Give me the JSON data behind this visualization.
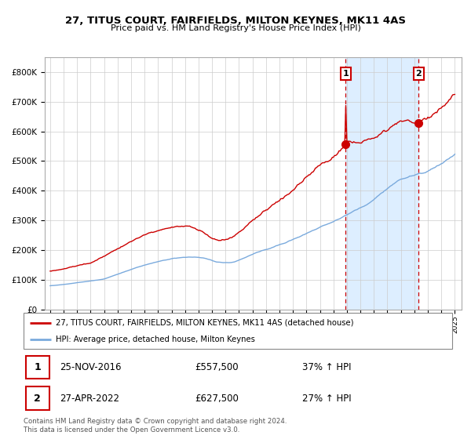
{
  "title": "27, TITUS COURT, FAIRFIELDS, MILTON KEYNES, MK11 4AS",
  "subtitle": "Price paid vs. HM Land Registry's House Price Index (HPI)",
  "legend_line1": "27, TITUS COURT, FAIRFIELDS, MILTON KEYNES, MK11 4AS (detached house)",
  "legend_line2": "HPI: Average price, detached house, Milton Keynes",
  "purchase1_date": "25-NOV-2016",
  "purchase1_price": "£557,500",
  "purchase1_hpi": "37% ↑ HPI",
  "purchase2_date": "27-APR-2022",
  "purchase2_price": "£627,500",
  "purchase2_hpi": "27% ↑ HPI",
  "footer": "Contains HM Land Registry data © Crown copyright and database right 2024.\nThis data is licensed under the Open Government Licence v3.0.",
  "red_color": "#cc0000",
  "blue_color": "#7aaadd",
  "bg_shaded_color": "#ddeeff",
  "purchase1_x": 2016.9,
  "purchase2_x": 2022.32,
  "purchase1_y": 557500,
  "purchase2_y": 627500,
  "ylim": [
    0,
    850000
  ],
  "xlim_start": 1994.6,
  "xlim_end": 2025.5
}
